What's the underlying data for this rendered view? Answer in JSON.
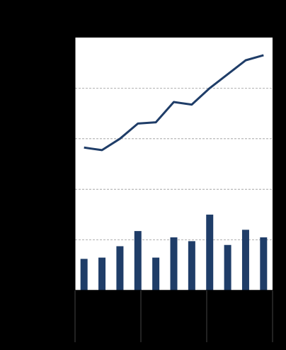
{
  "chart_data": {
    "type": "bar",
    "x": [
      1,
      2,
      3,
      4,
      5,
      6,
      7,
      8,
      9,
      10,
      11
    ],
    "ylim": [
      0,
      100
    ],
    "grid": true,
    "gridlines": [
      20,
      40,
      60,
      80
    ],
    "series": [
      {
        "kind": "bar",
        "values": [
          12.5,
          13,
          17.5,
          23.5,
          13,
          21,
          19.5,
          30,
          18,
          24,
          21
        ]
      },
      {
        "kind": "line",
        "values": [
          56.5,
          55.5,
          60,
          66,
          66.5,
          74.5,
          73.5,
          80,
          85.5,
          91,
          93
        ]
      }
    ],
    "x_groups": 3,
    "colors": {
      "background": "#000000",
      "plot": "#ffffff",
      "series": "#1f3d68",
      "grid": "#999999",
      "axis": "#000000",
      "divider": "#444444"
    }
  }
}
